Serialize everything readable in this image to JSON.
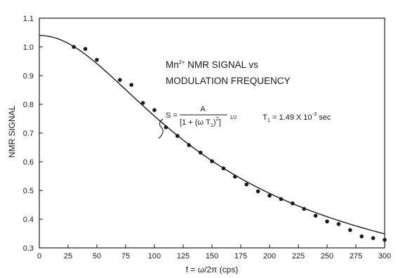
{
  "chart_data": {
    "type": "scatter",
    "title_line1": "Mn",
    "title_ion_charge": "2+",
    "title_line1_rest": " NMR SIGNAL vs",
    "title_line2": "MODULATION FREQUENCY",
    "xlabel": "f = ω/2π (cps)",
    "ylabel": "NMR SIGNAL",
    "xlim": [
      0,
      300
    ],
    "ylim": [
      0.3,
      1.1
    ],
    "x_ticks": [
      "0",
      "25",
      "50",
      "75",
      "100",
      "125",
      "150",
      "175",
      "200",
      "225",
      "250",
      "275",
      "300"
    ],
    "y_ticks": [
      "1.1",
      "1.0",
      "0.9",
      "0.8",
      "0.7",
      "0.6",
      "0.5",
      "0.4",
      "0.3"
    ],
    "formula": {
      "lhs": "S =",
      "numerator": "A",
      "denominator": "[1 + (ω T",
      "denominator_sub": "1",
      "denominator_close": ")",
      "denominator_sq": "2",
      "denominator_end": "]",
      "exponent": "1/2"
    },
    "time_constant": {
      "symbol": "T",
      "sub": "1",
      "value": " = 1.49 X 10",
      "exp": "-3",
      "unit": " sec"
    },
    "T1_seconds": 0.00149,
    "series": [
      {
        "style": "markers",
        "x": [
          30,
          40,
          50,
          70,
          80,
          90,
          100,
          110,
          120,
          130,
          140,
          150,
          160,
          170,
          180,
          190,
          200,
          210,
          220,
          230,
          240,
          250,
          260,
          270,
          280,
          290,
          300
        ],
        "y": [
          1.0,
          0.993,
          0.955,
          0.885,
          0.868,
          0.805,
          0.78,
          0.72,
          0.69,
          0.658,
          0.632,
          0.602,
          0.577,
          0.548,
          0.521,
          0.497,
          0.482,
          0.47,
          0.455,
          0.436,
          0.412,
          0.392,
          0.383,
          0.362,
          0.34,
          0.334,
          0.328
        ]
      },
      {
        "style": "line",
        "model": "S = A / [1 + (ω T1)^2]^(1/2)",
        "A": 1.04
      }
    ],
    "grid": false,
    "legend": "none"
  }
}
